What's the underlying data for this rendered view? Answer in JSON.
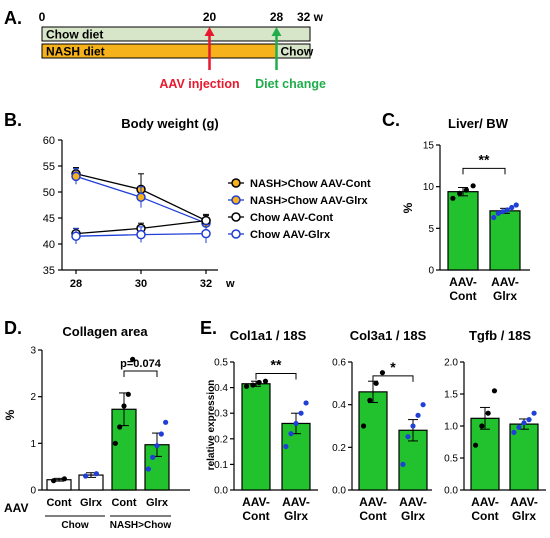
{
  "panel_a": {
    "label": "A.",
    "ticks": [
      {
        "value": 0,
        "text": "0"
      },
      {
        "value": 20,
        "text": "20"
      },
      {
        "value": 28,
        "text": "28"
      },
      {
        "value": 32,
        "text": "32 w"
      }
    ],
    "timeline_max": 32,
    "bars": [
      {
        "label": "Chow diet",
        "start": 0,
        "end": 32,
        "color": "#d7e6c8"
      },
      {
        "label": "NASH diet",
        "start": 0,
        "end": 28,
        "color": "#f5b21b"
      },
      {
        "label": "Chow",
        "start": 28,
        "end": 32,
        "color": "#d7e6c8"
      }
    ],
    "events": [
      {
        "label": "AAV injection",
        "week": 20,
        "color": "#e8192c"
      },
      {
        "label": "Diet change",
        "week": 28,
        "color": "#1fae4b"
      }
    ]
  },
  "chart_data": [
    {
      "panel": "B.",
      "type": "line",
      "title": "Body weight (g)",
      "x": [
        28,
        30,
        32
      ],
      "x_tick_labels": [
        "28",
        "30",
        "32"
      ],
      "x_unit": "w",
      "ylim": [
        35,
        60
      ],
      "yticks": [
        "35",
        "40",
        "45",
        "50",
        "55",
        "60"
      ],
      "series": [
        {
          "name": "NASH>Chow AAV-Cont",
          "values": [
            53.5,
            50.5,
            44.5
          ],
          "err": [
            1.2,
            3.0,
            1.2
          ],
          "marker_fill": "#f5b21b",
          "marker_stroke": "#000000",
          "line": "#000000"
        },
        {
          "name": "NASH>Chow AAV-Glrx",
          "values": [
            53.0,
            49.0,
            44.0
          ],
          "err": [
            1.5,
            2.0,
            1.0
          ],
          "marker_fill": "#f5b21b",
          "marker_stroke": "#1f3fd6",
          "line": "#1f3fd6"
        },
        {
          "name": "Chow AAV-Cont",
          "values": [
            42.0,
            43.0,
            44.5
          ],
          "err": [
            1.0,
            1.0,
            1.0
          ],
          "marker_fill": "#ffffff",
          "marker_stroke": "#000000",
          "line": "#000000"
        },
        {
          "name": "Chow AAV-Glrx",
          "values": [
            41.5,
            41.8,
            42.0
          ],
          "err": [
            1.5,
            1.5,
            1.8
          ],
          "marker_fill": "#ffffff",
          "marker_stroke": "#1f3fd6",
          "line": "#1f3fd6"
        }
      ]
    },
    {
      "panel": "C.",
      "type": "bar",
      "title": "Liver/ BW",
      "ylabel": "%",
      "ylim": [
        0,
        15
      ],
      "yticks": [
        "0",
        "5",
        "10",
        "15"
      ],
      "categories": [
        "AAV-\nCont",
        "AAV-\nGlrx"
      ],
      "values": [
        9.4,
        7.1
      ],
      "err": [
        0.5,
        0.3
      ],
      "bar_colors": [
        "#22c22f",
        "#22c22f"
      ],
      "points": [
        [
          8.6,
          9.2,
          9.6,
          10.1
        ],
        [
          6.3,
          6.8,
          7.0,
          7.2,
          7.5,
          7.8
        ]
      ],
      "point_colors": [
        "#000000",
        "#1f3fd6"
      ],
      "significance": [
        {
          "between": [
            0,
            1
          ],
          "label": "**",
          "y": 12.2
        }
      ]
    },
    {
      "panel": "D.",
      "type": "bar",
      "title": "Collagen area",
      "ylabel": "%",
      "ylim": [
        0,
        3
      ],
      "yticks": [
        "0",
        "1",
        "2",
        "3"
      ],
      "row_label": "AAV",
      "categories": [
        "Cont",
        "Glrx",
        "Cont",
        "Glrx"
      ],
      "groups": [
        {
          "label": "Chow",
          "span": [
            0,
            1
          ]
        },
        {
          "label": "NASH>Chow",
          "span": [
            2,
            3
          ]
        }
      ],
      "values": [
        0.22,
        0.32,
        1.73,
        0.97
      ],
      "err": [
        0.03,
        0.05,
        0.35,
        0.25
      ],
      "bar_colors": [
        "#ffffff",
        "#ffffff",
        "#22c22f",
        "#22c22f"
      ],
      "points": [
        [
          0.2,
          0.24
        ],
        [
          0.3,
          0.35
        ],
        [
          1.0,
          1.35,
          1.8,
          2.05,
          2.8
        ],
        [
          0.45,
          0.7,
          0.95,
          1.2,
          1.45
        ]
      ],
      "point_colors": [
        "#000000",
        "#1f3fd6",
        "#000000",
        "#1f3fd6"
      ],
      "significance": [
        {
          "between": [
            2,
            3
          ],
          "label": "p=0.074",
          "y": 2.55
        }
      ]
    },
    {
      "panel": "E.",
      "type": "bar",
      "title": "Col1a1 / 18S",
      "ylabel": "relative expression",
      "ylim": [
        0,
        0.5
      ],
      "yticks": [
        "0.0",
        "0.1",
        "0.2",
        "0.3",
        "0.4",
        "0.5"
      ],
      "categories": [
        "AAV-\nCont",
        "AAV-\nGlrx"
      ],
      "values": [
        0.415,
        0.26
      ],
      "err": [
        0.01,
        0.04
      ],
      "bar_colors": [
        "#22c22f",
        "#22c22f"
      ],
      "points": [
        [
          0.405,
          0.41,
          0.42,
          0.425
        ],
        [
          0.17,
          0.22,
          0.26,
          0.3,
          0.34
        ]
      ],
      "point_colors": [
        "#000000",
        "#1f3fd6"
      ],
      "significance": [
        {
          "between": [
            0,
            1
          ],
          "label": "**",
          "y": 0.455
        }
      ]
    },
    {
      "panel": "",
      "type": "bar",
      "title": "Col3a1 / 18S",
      "ylabel": "",
      "ylim": [
        0,
        0.6
      ],
      "yticks": [
        "0.0",
        "0.2",
        "0.4",
        "0.6"
      ],
      "categories": [
        "AAV-\nCont",
        "AAV-\nGlrx"
      ],
      "values": [
        0.46,
        0.28
      ],
      "err": [
        0.05,
        0.05
      ],
      "bar_colors": [
        "#22c22f",
        "#22c22f"
      ],
      "points": [
        [
          0.3,
          0.42,
          0.5,
          0.55
        ],
        [
          0.12,
          0.25,
          0.3,
          0.35,
          0.4
        ]
      ],
      "point_colors": [
        "#000000",
        "#1f3fd6"
      ],
      "significance": [
        {
          "between": [
            0,
            1
          ],
          "label": "*",
          "y": 0.535
        }
      ]
    },
    {
      "panel": "",
      "type": "bar",
      "title": "Tgfb / 18S",
      "ylabel": "",
      "ylim": [
        0,
        2.0
      ],
      "yticks": [
        "0.0",
        "0.5",
        "1.0",
        "1.5",
        "2.0"
      ],
      "categories": [
        "AAV-\nCont",
        "AAV-\nGlrx"
      ],
      "values": [
        1.12,
        1.03
      ],
      "err": [
        0.17,
        0.08
      ],
      "bar_colors": [
        "#22c22f",
        "#22c22f"
      ],
      "points": [
        [
          0.7,
          1.0,
          1.2,
          1.55
        ],
        [
          0.9,
          0.98,
          1.05,
          1.1,
          1.2
        ]
      ],
      "point_colors": [
        "#000000",
        "#1f3fd6"
      ],
      "significance": []
    }
  ]
}
